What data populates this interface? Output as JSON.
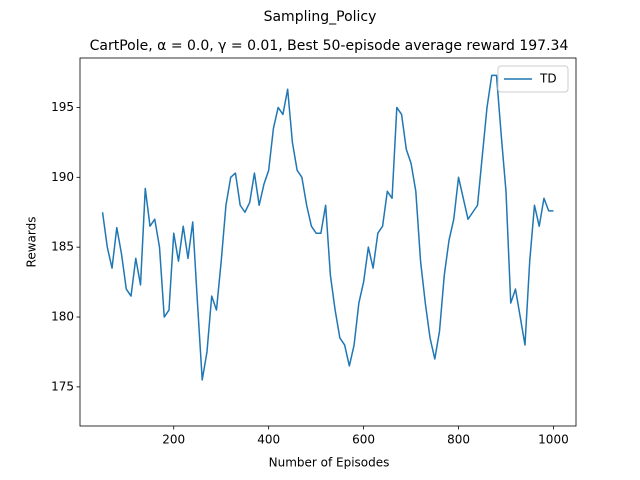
{
  "chart_data": {
    "type": "line",
    "suptitle": "Sampling_Policy",
    "title": "CartPole, α = 0.0, γ = 0.01, Best 50-episode average reward 197.34",
    "xlabel": "Number of Episodes",
    "ylabel": "Rewards",
    "x": [
      50,
      60,
      70,
      80,
      90,
      100,
      110,
      120,
      130,
      140,
      150,
      160,
      170,
      180,
      190,
      200,
      210,
      220,
      230,
      240,
      250,
      260,
      270,
      280,
      290,
      300,
      310,
      320,
      330,
      340,
      350,
      360,
      370,
      380,
      390,
      400,
      410,
      420,
      430,
      440,
      450,
      460,
      470,
      480,
      490,
      500,
      510,
      520,
      530,
      540,
      550,
      560,
      570,
      580,
      590,
      600,
      610,
      620,
      630,
      640,
      650,
      660,
      670,
      680,
      690,
      700,
      710,
      720,
      730,
      740,
      750,
      760,
      770,
      780,
      790,
      800,
      810,
      820,
      830,
      840,
      850,
      860,
      870,
      880,
      890,
      900,
      910,
      920,
      930,
      940,
      950,
      960,
      970,
      980,
      990,
      1000
    ],
    "series": [
      {
        "name": "TD",
        "color": "#1f77b4",
        "values": [
          187.5,
          185.0,
          183.5,
          186.4,
          184.5,
          182.0,
          181.5,
          184.2,
          182.3,
          189.2,
          186.5,
          187.0,
          185.0,
          180.0,
          180.5,
          186.0,
          184.0,
          186.5,
          184.2,
          186.8,
          181.0,
          175.5,
          177.5,
          181.5,
          180.5,
          184.0,
          188.0,
          190.0,
          190.3,
          188.0,
          187.5,
          188.2,
          190.3,
          188.0,
          189.5,
          190.5,
          193.5,
          195.0,
          194.5,
          196.3,
          192.5,
          190.5,
          190.0,
          188.0,
          186.5,
          186.0,
          186.0,
          188.0,
          183.0,
          180.5,
          178.5,
          178.0,
          176.5,
          178.0,
          181.0,
          182.5,
          185.0,
          183.5,
          186.0,
          186.5,
          189.0,
          188.5,
          195.0,
          194.5,
          192.0,
          191.0,
          189.0,
          184.0,
          181.0,
          178.5,
          177.0,
          179.0,
          183.0,
          185.5,
          187.0,
          190.0,
          188.5,
          187.0,
          187.5,
          188.0,
          191.5,
          195.0,
          197.3,
          197.3,
          193.0,
          189.0,
          181.0,
          182.0,
          180.0,
          178.0,
          184.0,
          188.0,
          186.5,
          188.5,
          187.6,
          187.6
        ]
      }
    ],
    "xlim": [
      2.5,
      1047.5
    ],
    "ylim": [
      172.2,
      198.54
    ],
    "xticks": [
      200,
      400,
      600,
      800,
      1000
    ],
    "yticks": [
      175,
      180,
      185,
      190,
      195
    ],
    "legend": "upper right"
  }
}
